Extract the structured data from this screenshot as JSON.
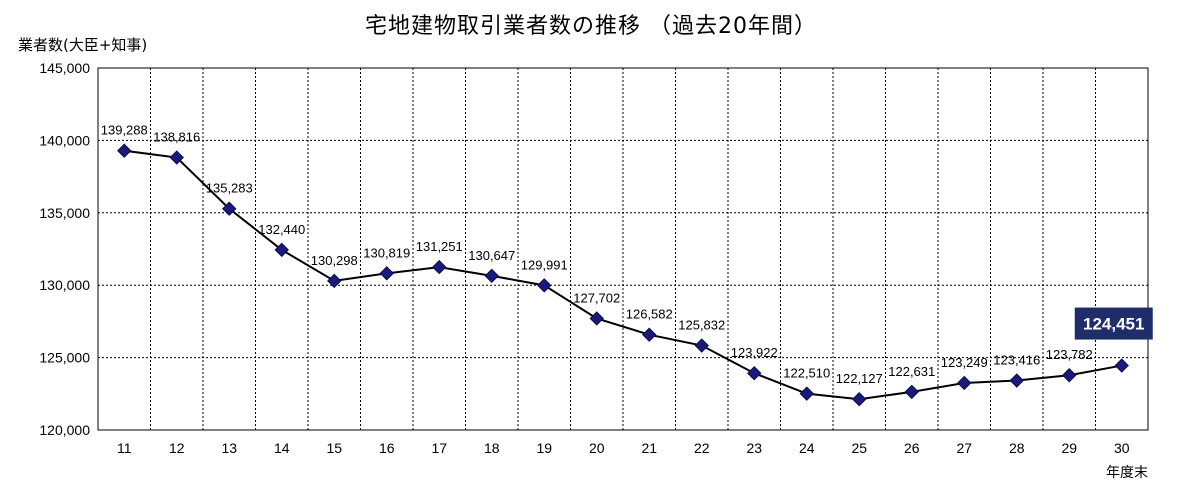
{
  "chart_data": {
    "type": "line",
    "title": "宅地建物取引業者数の推移 （過去20年間）",
    "ylabel": "業者数(大臣+知事)",
    "xlabel": "年度末",
    "categories": [
      "11",
      "12",
      "13",
      "14",
      "15",
      "16",
      "17",
      "18",
      "19",
      "20",
      "21",
      "22",
      "23",
      "24",
      "25",
      "26",
      "27",
      "28",
      "29",
      "30"
    ],
    "series": [
      {
        "values": [
          139288,
          138816,
          135283,
          132440,
          130298,
          130819,
          131251,
          130647,
          129991,
          127702,
          126582,
          125832,
          123922,
          122510,
          122127,
          122631,
          123249,
          123416,
          123782,
          124451
        ]
      }
    ],
    "data_labels": [
      "139,288",
      "138,816",
      "135,283",
      "132,440",
      "130,298",
      "130,819",
      "131,251",
      "130,647",
      "129,991",
      "127,702",
      "126,582",
      "125,832",
      "123,922",
      "122,510",
      "122,127",
      "122,631",
      "123,249",
      "123,416",
      "123,782",
      "124,451"
    ],
    "ylim": [
      120000,
      145000
    ],
    "yticks": [
      120000,
      125000,
      130000,
      135000,
      140000,
      145000
    ],
    "ytick_labels": [
      "120,000",
      "125,000",
      "130,000",
      "135,000",
      "140,000",
      "145,000"
    ],
    "grid": true,
    "highlight": {
      "index": 19,
      "label": "124,451",
      "background": "#1f2d6b"
    },
    "line_color": "#000000",
    "marker_color": "#1a1a7a"
  }
}
